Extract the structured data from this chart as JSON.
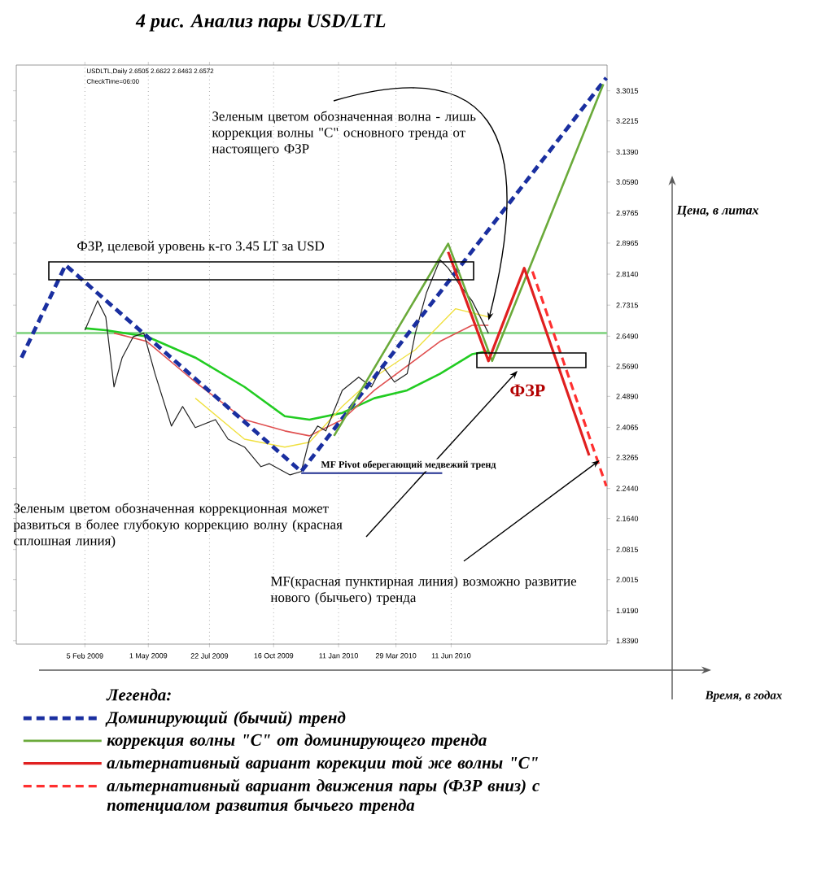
{
  "chart_data": {
    "type": "line",
    "title": "4 рис.        Анализ пары  USD/LTL",
    "ylabel": "Цена, в литах",
    "legend_title": "Легенда:",
    "legend": "bottom",
    "grid": "x",
    "annotations": [
      {
        "text": "Зеленым цветом обозначенная волна - лишь коррекция волны \"C\" основного тренда от настоящего ФЗР",
        "x": "2010-07-31",
        "y": 2.691
      },
      "ФЗР, целевой уровень к-го 3.45 LT за USD",
      "ФЗР",
      "MF Pivot оберегающий медвежий тренд",
      "Зеленым цветом обозначенная коррекционная может развиться в более глубокую коррекцию волну (красная сплошная линия)",
      {
        "text": "MF(красная пунктирная линия) возможно развитие нового (бычьего) тренда",
        "x": "2010-12-27",
        "y": 2.319
      },
      "USDLTL,Daily  2.6505 2.6622 2.6463 2.6572",
      "CheckTime=06:00",
      "Время, в годах"
    ],
    "xlim": [
      "2008-11-05",
      "2011-01-06"
    ],
    "ylim": [
      1.83,
      3.37
    ],
    "xticks": [
      {
        "value": "2009-02-05",
        "label": "5 Feb 2009"
      },
      {
        "value": "2009-05-01",
        "label": "1 May 2009"
      },
      {
        "value": "2009-07-22",
        "label": "22 Jul 2009"
      },
      {
        "value": "2009-10-16",
        "label": "16 Oct 2009"
      },
      {
        "value": "2010-01-11",
        "label": "11 Jan 2010"
      },
      {
        "value": "2010-03-29",
        "label": "29 Mar 2010"
      },
      {
        "value": "2010-06-11",
        "label": "11 Jun 2010"
      }
    ],
    "yticks": [
      3.3015,
      3.2215,
      {
        "value": 3.139,
        "label": "3.1390"
      },
      {
        "value": 3.059,
        "label": "3.0590"
      },
      2.9765,
      2.8965,
      {
        "value": 2.814,
        "label": "2.8140"
      },
      2.7315,
      {
        "value": 2.649,
        "label": "2.6490"
      },
      {
        "value": 2.569,
        "label": "2.5690"
      },
      {
        "value": 2.489,
        "label": "2.4890"
      },
      2.4065,
      2.3265,
      {
        "value": 2.244,
        "label": "2.2440"
      },
      {
        "value": 2.164,
        "label": "2.1640"
      },
      2.0815,
      2.0015,
      {
        "value": 1.919,
        "label": "1.9190"
      },
      {
        "value": 1.839,
        "label": "1.8390"
      }
    ],
    "ref_lines": [
      {
        "axis": "y",
        "value": 2.6572,
        "color": "#8fd88f"
      }
    ],
    "series": [
      {
        "color": "#22cc22",
        "x": [
          "2009-02-05",
          "2009-03-05",
          "2009-04-29",
          "2009-07-03",
          "2009-09-07",
          "2009-10-31",
          "2009-12-03",
          "2010-01-16",
          "2010-02-28",
          "2010-04-13",
          "2010-05-27",
          "2010-07-09",
          "2010-07-31"
        ],
        "values": [
          2.67,
          2.665,
          2.648,
          2.592,
          2.514,
          2.436,
          2.427,
          2.445,
          2.484,
          2.505,
          2.549,
          2.601,
          2.609
        ]
      },
      {
        "color": "#e05050",
        "x": [
          "2009-03-16",
          "2009-04-29",
          "2009-07-03",
          "2009-09-07",
          "2009-10-31",
          "2009-12-03",
          "2010-01-16",
          "2010-02-28",
          "2010-04-13",
          "2010-05-27",
          "2010-07-09",
          "2010-07-31"
        ],
        "values": [
          2.657,
          2.635,
          2.527,
          2.427,
          2.397,
          2.384,
          2.427,
          2.505,
          2.57,
          2.635,
          2.678,
          2.678
        ]
      },
      {
        "color": "#f0e040",
        "x": [
          "2009-07-03",
          "2009-09-07",
          "2009-10-31",
          "2009-12-03",
          "2010-01-16",
          "2010-02-28",
          "2010-04-24",
          "2010-06-17",
          "2010-07-31"
        ],
        "values": [
          2.484,
          2.375,
          2.354,
          2.367,
          2.462,
          2.54,
          2.613,
          2.722,
          2.7
        ]
      },
      {
        "color": "#202020",
        "x": [
          "2009-02-05",
          "2009-02-22",
          "2009-03-05",
          "2009-03-16",
          "2009-03-27",
          "2009-04-11",
          "2009-04-25",
          "2009-05-10",
          "2009-06-01",
          "2009-06-16",
          "2009-07-03",
          "2009-07-30",
          "2009-08-16",
          "2009-09-07",
          "2009-09-29",
          "2009-10-10",
          "2009-11-07",
          "2009-11-22",
          "2009-12-03",
          "2009-12-14",
          "2009-12-25",
          "2010-01-16",
          "2010-02-07",
          "2010-02-24",
          "2010-03-11",
          "2010-03-27",
          "2010-04-13",
          "2010-04-24",
          "2010-05-09",
          "2010-05-27",
          "2010-06-07",
          "2010-06-22",
          "2010-07-09",
          "2010-07-31"
        ],
        "values": [
          2.665,
          2.743,
          2.7,
          2.514,
          2.592,
          2.648,
          2.657,
          2.549,
          2.41,
          2.462,
          2.406,
          2.427,
          2.375,
          2.354,
          2.302,
          2.31,
          2.28,
          2.289,
          2.375,
          2.41,
          2.397,
          2.505,
          2.54,
          2.514,
          2.57,
          2.527,
          2.549,
          2.657,
          2.765,
          2.852,
          2.83,
          2.787,
          2.743,
          2.657
        ]
      },
      {
        "color": "#1f2f8f",
        "x": [
          "2009-11-22",
          "2010-05-30"
        ],
        "values": [
          2.285,
          2.285
        ]
      },
      {
        "name": "Доминирующий (бычий) тренд",
        "color": "#1a2fa0",
        "line_style": "dashed",
        "x": [
          "2008-11-12",
          "2009-01-10",
          "2009-11-22",
          "2011-01-05"
        ],
        "values": [
          2.592,
          2.838,
          2.289,
          3.336
        ]
      },
      {
        "name": "коррекция волны  \"C\" от доминирующего тренда",
        "color": "#6aaa3a",
        "x": [
          "2010-01-05",
          "2010-06-07",
          "2010-08-05",
          "2011-01-01"
        ],
        "values": [
          2.384,
          2.895,
          2.583,
          3.319
        ]
      },
      {
        "name": "альтернативный вариант корекции той же волны  \"C\"",
        "color": "#e02020",
        "x": [
          "2010-06-07",
          "2010-07-31",
          "2010-09-17",
          "2010-12-13"
        ],
        "values": [
          2.873,
          2.583,
          2.83,
          2.332
        ]
      },
      {
        "name": "альтернативный вариант движения пары (ФЗР вниз) с потенциалом развития бычьего тренда",
        "color": "#ff3030",
        "line_style": "dashed",
        "x": [
          "2010-09-28",
          "2011-01-05"
        ],
        "values": [
          2.821,
          2.25
        ]
      }
    ]
  }
}
